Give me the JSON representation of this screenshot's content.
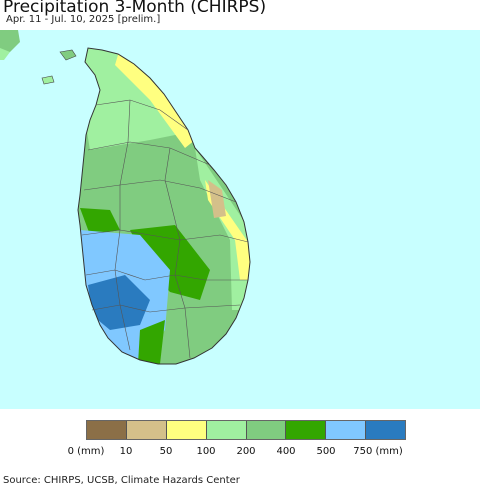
{
  "header": {
    "title": "Precipitation 3-Month (CHIRPS)",
    "subtitle": "Apr. 11 - Jul. 10, 2025 [prelim.]"
  },
  "legend": {
    "labels": [
      "0 (mm)",
      "10",
      "50",
      "100",
      "200",
      "400",
      "500",
      "750 (mm)"
    ],
    "colors": [
      "#8b6f47",
      "#d4c08a",
      "#ffff80",
      "#a0f0a0",
      "#80cc80",
      "#33a600",
      "#80c8ff",
      "#2a7bbf"
    ]
  },
  "map": {
    "ocean_color": "#c8ffff",
    "boundary_color": "#555555"
  },
  "footer": {
    "source": "Source: CHIRPS, UCSB, Climate Hazards Center"
  }
}
